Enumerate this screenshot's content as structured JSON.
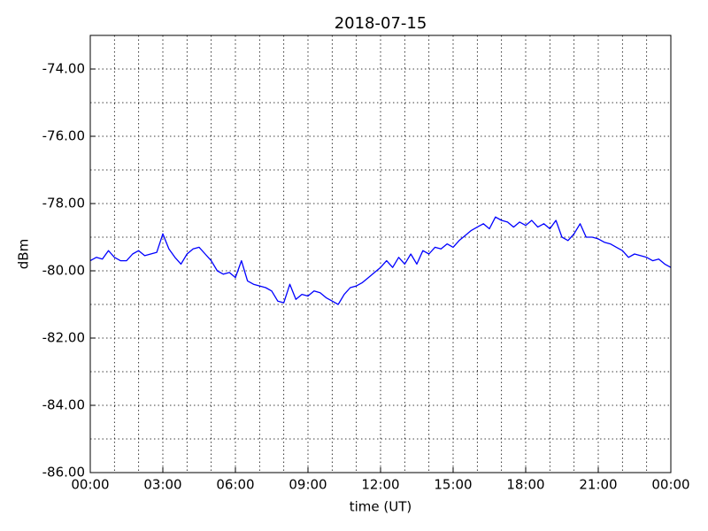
{
  "chart_data": {
    "type": "line",
    "title": "2018-07-15",
    "x_label": "time (UT)",
    "y_label": "dBm",
    "color": "#0000ff",
    "grid": true,
    "x": [
      0,
      0.25,
      0.5,
      0.75,
      1,
      1.25,
      1.5,
      1.75,
      2,
      2.25,
      2.5,
      2.75,
      3,
      3.25,
      3.5,
      3.75,
      4,
      4.25,
      4.5,
      4.75,
      5,
      5.25,
      5.5,
      5.75,
      6,
      6.25,
      6.5,
      6.75,
      7,
      7.25,
      7.5,
      7.75,
      8,
      8.25,
      8.5,
      8.75,
      9,
      9.25,
      9.5,
      9.75,
      10,
      10.25,
      10.5,
      10.75,
      11,
      11.25,
      11.5,
      11.75,
      12,
      12.25,
      12.5,
      12.75,
      13,
      13.25,
      13.5,
      13.75,
      14,
      14.25,
      14.5,
      14.75,
      15,
      15.25,
      15.5,
      15.75,
      16,
      16.25,
      16.5,
      16.75,
      17,
      17.25,
      17.5,
      17.75,
      18,
      18.25,
      18.5,
      18.75,
      19,
      19.25,
      19.5,
      19.75,
      20,
      20.25,
      20.5,
      20.75,
      21,
      21.25,
      21.5,
      21.75,
      22,
      22.25,
      22.5,
      22.75,
      23,
      23.25,
      23.5,
      23.75,
      24
    ],
    "values": [
      -79.7,
      -79.6,
      -79.65,
      -79.4,
      -79.6,
      -79.7,
      -79.7,
      -79.5,
      -79.4,
      -79.55,
      -79.5,
      -79.45,
      -78.9,
      -79.35,
      -79.6,
      -79.8,
      -79.5,
      -79.35,
      -79.3,
      -79.5,
      -79.7,
      -80.0,
      -80.1,
      -80.05,
      -80.2,
      -79.7,
      -80.3,
      -80.4,
      -80.45,
      -80.5,
      -80.6,
      -80.9,
      -80.95,
      -80.4,
      -80.85,
      -80.7,
      -80.75,
      -80.6,
      -80.65,
      -80.8,
      -80.9,
      -81.0,
      -80.7,
      -80.5,
      -80.45,
      -80.35,
      -80.2,
      -80.05,
      -79.9,
      -79.7,
      -79.9,
      -79.6,
      -79.8,
      -79.5,
      -79.8,
      -79.4,
      -79.5,
      -79.3,
      -79.35,
      -79.2,
      -79.3,
      -79.1,
      -78.95,
      -78.8,
      -78.7,
      -78.6,
      -78.75,
      -78.4,
      -78.5,
      -78.55,
      -78.7,
      -78.55,
      -78.65,
      -78.5,
      -78.7,
      -78.6,
      -78.75,
      -78.5,
      -79.0,
      -79.1,
      -78.9,
      -78.6,
      -79.0,
      -79.0,
      -79.05,
      -79.15,
      -79.2,
      -79.3,
      -79.4,
      -79.6,
      -79.5,
      -79.55,
      -79.6,
      -79.7,
      -79.65,
      -79.8,
      -79.9
    ],
    "xlim": [
      0,
      24
    ],
    "xticks": [
      {
        "value": 0,
        "label": "00:00"
      },
      {
        "value": 3,
        "label": "03:00"
      },
      {
        "value": 6,
        "label": "06:00"
      },
      {
        "value": 9,
        "label": "09:00"
      },
      {
        "value": 12,
        "label": "12:00"
      },
      {
        "value": 15,
        "label": "15:00"
      },
      {
        "value": 18,
        "label": "18:00"
      },
      {
        "value": 21,
        "label": "21:00"
      },
      {
        "value": 24,
        "label": "00:00"
      }
    ],
    "xminorticks": [
      1,
      2,
      4,
      5,
      7,
      8,
      10,
      11,
      13,
      14,
      16,
      17,
      19,
      20,
      22,
      23
    ],
    "ylim": [
      -86,
      -73
    ],
    "yticks": [
      {
        "value": -86,
        "label": "-86.00"
      },
      {
        "value": -84,
        "label": "-84.00"
      },
      {
        "value": -82,
        "label": "-82.00"
      },
      {
        "value": -80,
        "label": "-80.00"
      },
      {
        "value": -78,
        "label": "-78.00"
      },
      {
        "value": -76,
        "label": "-76.00"
      },
      {
        "value": -74,
        "label": "-74.00"
      }
    ],
    "yminorticks": [
      -85,
      -83,
      -81,
      -79,
      -77,
      -75
    ]
  }
}
